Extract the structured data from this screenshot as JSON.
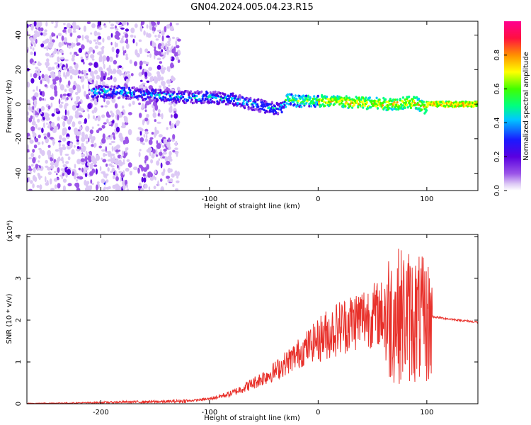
{
  "title": "GN04.2024.005.04.23.R15",
  "colors": {
    "signal_line": "#e8302a",
    "axis": "#000000",
    "colorbar_stops": [
      "#ffffff",
      "#dcc8f5",
      "#9b55e8",
      "#5a00e0",
      "#1a1aff",
      "#00c8ff",
      "#00ff80",
      "#40ff00",
      "#ffff00",
      "#ff9000",
      "#ff1040",
      "#ff0090"
    ]
  },
  "chart_data": [
    {
      "type": "heatmap",
      "xlabel": "Height of straight line (km)",
      "ylabel": "Frequency (Hz)",
      "xlim": [
        -268,
        147
      ],
      "ylim": [
        -50,
        48
      ],
      "xticks": [
        -200,
        -100,
        0,
        100
      ],
      "yticks": [
        -40,
        -20,
        0,
        20,
        40
      ],
      "colorbar": {
        "label": "Normalized spectral amplitude",
        "range": [
          0,
          1
        ],
        "ticks": [
          0.0,
          0.2,
          0.4,
          0.6,
          0.8
        ]
      },
      "ridge": {
        "x": [
          -208,
          -180,
          -150,
          -120,
          -100,
          -80,
          -60,
          -45,
          -35,
          -28,
          -20,
          0,
          30,
          60,
          90,
          98,
          102,
          147
        ],
        "y": [
          7,
          7,
          5,
          4,
          4,
          3,
          0,
          -2,
          -3,
          3,
          2,
          2,
          1,
          0,
          1,
          -2,
          0,
          0
        ]
      }
    },
    {
      "type": "line",
      "xlabel": "Height of straight line (km)",
      "ylabel": "SNR (10 * v/v)",
      "yunit": "(x10⁴)",
      "xlim": [
        -268,
        147
      ],
      "ylim": [
        0,
        4.05
      ],
      "xticks": [
        -200,
        -100,
        0,
        100
      ],
      "yticks": [
        0,
        1,
        2,
        3,
        4
      ],
      "envelope": {
        "x": [
          -268,
          -220,
          -180,
          -140,
          -120,
          -100,
          -80,
          -60,
          -40,
          -20,
          0,
          20,
          40,
          60,
          80,
          90,
          100,
          104,
          106,
          120,
          147
        ],
        "y": [
          0.01,
          0.02,
          0.04,
          0.05,
          0.07,
          0.12,
          0.25,
          0.5,
          0.8,
          1.2,
          1.6,
          1.9,
          2.15,
          2.25,
          2.3,
          2.2,
          2.1,
          2.1,
          2.08,
          2.03,
          1.95
        ]
      }
    }
  ]
}
